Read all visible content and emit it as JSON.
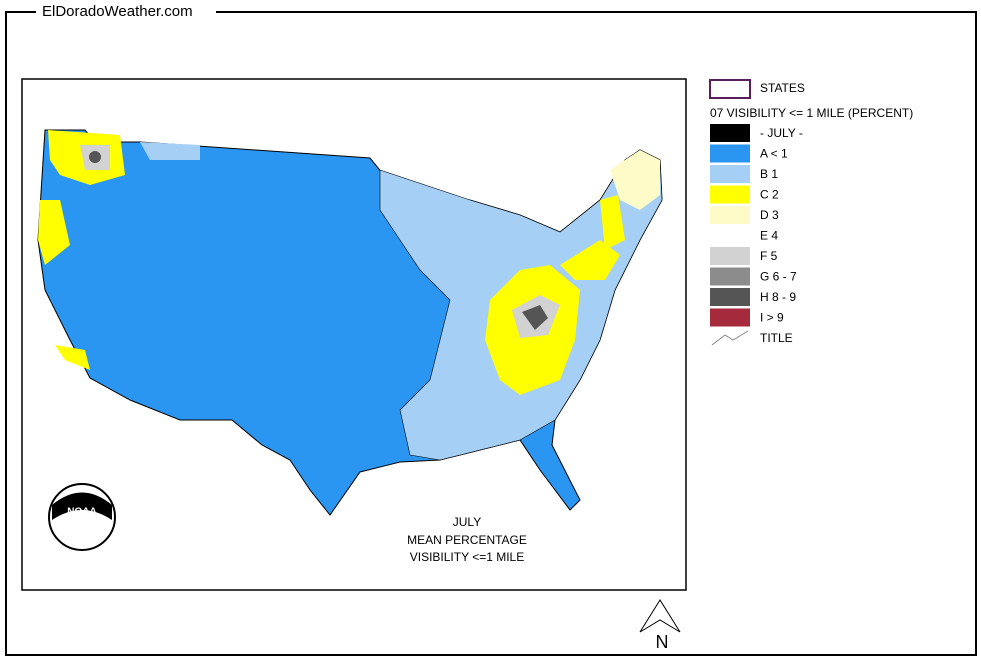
{
  "header": {
    "site": "ElDoradoWeather.com"
  },
  "legend": {
    "states": "STATES",
    "layer": "07 VISIBILITY <= 1 MILE (PERCENT)",
    "items": [
      {
        "label": "- JULY -",
        "color": "#000000"
      },
      {
        "label": "A < 1",
        "color": "#2b96f2"
      },
      {
        "label": "B 1",
        "color": "#a6cff5"
      },
      {
        "label": "C 2",
        "color": "#ffff00"
      },
      {
        "label": "D 3",
        "color": "#fffbc8"
      },
      {
        "label": "E 4",
        "color": "#ffffff"
      },
      {
        "label": "F 5",
        "color": "#d2d2d2"
      },
      {
        "label": "G 6 - 7",
        "color": "#8c8c8c"
      },
      {
        "label": "H 8 - 9",
        "color": "#555555"
      },
      {
        "label": "I > 9",
        "color": "#a52a3c"
      }
    ],
    "title": "TITLE"
  },
  "map": {
    "title_lines": [
      "JULY",
      "MEAN PERCENTAGE",
      "VISIBILITY <=1 MILE"
    ],
    "logo": "NOAA",
    "north": "N"
  }
}
